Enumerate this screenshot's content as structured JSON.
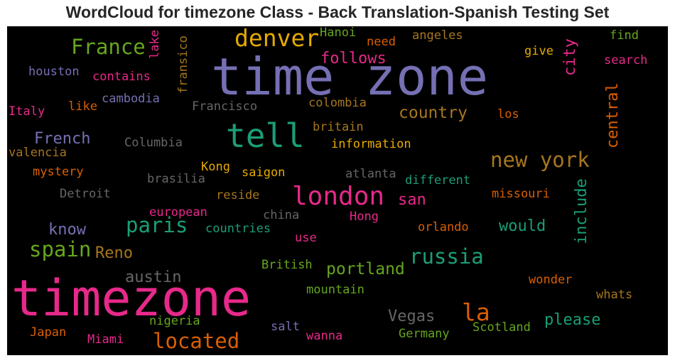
{
  "title": "WordCloud for timezone Class - Back Translation-Spanish Testing Set",
  "palette": {
    "purple": "#7570b3",
    "pink": "#e7298a",
    "teal": "#1b9e77",
    "orange": "#d95f02",
    "green": "#66a61e",
    "gold": "#e6ab02",
    "brown": "#a6761d",
    "gray": "#666666"
  },
  "words": [
    {
      "text": "time zone",
      "color": "#7570b3"
    },
    {
      "text": "timezone",
      "color": "#e7298a"
    },
    {
      "text": "tell",
      "color": "#1b9e77"
    },
    {
      "text": "london",
      "color": "#e7298a"
    },
    {
      "text": "denver",
      "color": "#e6ab02"
    },
    {
      "text": "France",
      "color": "#66a61e"
    },
    {
      "text": "new york",
      "color": "#a6761d"
    },
    {
      "text": "russia",
      "color": "#1b9e77"
    },
    {
      "text": "la",
      "color": "#d95f02"
    },
    {
      "text": "located",
      "color": "#d95f02"
    },
    {
      "text": "spain",
      "color": "#66a61e"
    },
    {
      "text": "paris",
      "color": "#1b9e77"
    },
    {
      "text": "portland",
      "color": "#66a61e"
    },
    {
      "text": "country",
      "color": "#a6761d"
    },
    {
      "text": "follows",
      "color": "#e7298a"
    },
    {
      "text": "French",
      "color": "#7570b3"
    },
    {
      "text": "would",
      "color": "#1b9e77"
    },
    {
      "text": "Vegas",
      "color": "#666666"
    },
    {
      "text": "please",
      "color": "#1b9e77"
    },
    {
      "text": "austin",
      "color": "#666666"
    },
    {
      "text": "know",
      "color": "#7570b3"
    },
    {
      "text": "Reno",
      "color": "#a6761d"
    },
    {
      "text": "san",
      "color": "#e7298a"
    },
    {
      "text": "central",
      "color": "#d95f02"
    },
    {
      "text": "include",
      "color": "#1b9e77"
    },
    {
      "text": "city",
      "color": "#e7298a"
    },
    {
      "text": "Hanoi",
      "color": "#66a61e"
    },
    {
      "text": "angeles",
      "color": "#a6761d"
    },
    {
      "text": "find",
      "color": "#66a61e"
    },
    {
      "text": "need",
      "color": "#d95f02"
    },
    {
      "text": "give",
      "color": "#e6ab02"
    },
    {
      "text": "search",
      "color": "#e7298a"
    },
    {
      "text": "lake",
      "color": "#e7298a"
    },
    {
      "text": "fransico",
      "color": "#a6761d"
    },
    {
      "text": "houston",
      "color": "#7570b3"
    },
    {
      "text": "contains",
      "color": "#e7298a"
    },
    {
      "text": "cambodia",
      "color": "#7570b3"
    },
    {
      "text": "Italy",
      "color": "#e7298a"
    },
    {
      "text": "like",
      "color": "#d95f02"
    },
    {
      "text": "Francisco",
      "color": "#666666"
    },
    {
      "text": "colombia",
      "color": "#a6761d"
    },
    {
      "text": "los",
      "color": "#d95f02"
    },
    {
      "text": "britain",
      "color": "#a6761d"
    },
    {
      "text": "information",
      "color": "#e6ab02"
    },
    {
      "text": "Columbia",
      "color": "#666666"
    },
    {
      "text": "valencia",
      "color": "#a6761d"
    },
    {
      "text": "mystery",
      "color": "#d95f02"
    },
    {
      "text": "Kong",
      "color": "#e6ab02"
    },
    {
      "text": "saigon",
      "color": "#e6ab02"
    },
    {
      "text": "brasilia",
      "color": "#666666"
    },
    {
      "text": "atlanta",
      "color": "#666666"
    },
    {
      "text": "different",
      "color": "#1b9e77"
    },
    {
      "text": "Detroit",
      "color": "#666666"
    },
    {
      "text": "reside",
      "color": "#a6761d"
    },
    {
      "text": "missouri",
      "color": "#d95f02"
    },
    {
      "text": "european",
      "color": "#e7298a"
    },
    {
      "text": "china",
      "color": "#666666"
    },
    {
      "text": "Hong",
      "color": "#e7298a"
    },
    {
      "text": "countries",
      "color": "#1b9e77"
    },
    {
      "text": "orlando",
      "color": "#d95f02"
    },
    {
      "text": "use",
      "color": "#e7298a"
    },
    {
      "text": "British",
      "color": "#66a61e"
    },
    {
      "text": "wonder",
      "color": "#d95f02"
    },
    {
      "text": "mountain",
      "color": "#66a61e"
    },
    {
      "text": "whats",
      "color": "#a6761d"
    },
    {
      "text": "nigeria",
      "color": "#66a61e"
    },
    {
      "text": "Japan",
      "color": "#d95f02"
    },
    {
      "text": "Miami",
      "color": "#e7298a"
    },
    {
      "text": "salt",
      "color": "#7570b3"
    },
    {
      "text": "wanna",
      "color": "#e7298a"
    },
    {
      "text": "Germany",
      "color": "#66a61e"
    },
    {
      "text": "Scotland",
      "color": "#66a61e"
    }
  ]
}
